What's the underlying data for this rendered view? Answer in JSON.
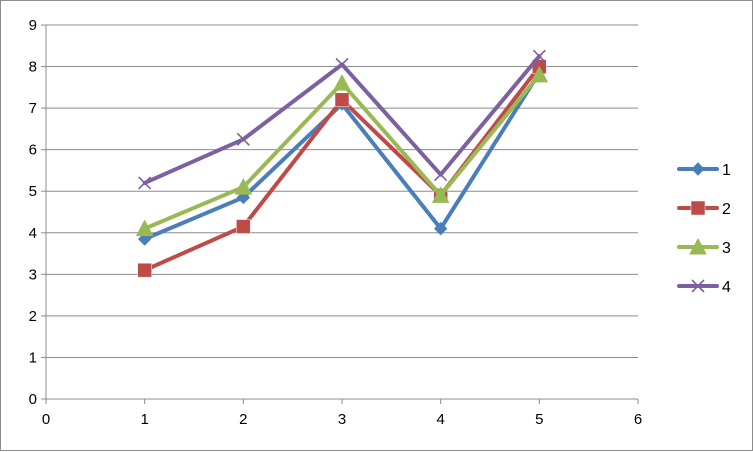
{
  "chart_data": {
    "type": "line",
    "title": "",
    "xlabel": "",
    "ylabel": "",
    "xlim": [
      0,
      6
    ],
    "ylim": [
      0,
      9
    ],
    "x_ticks": [
      0,
      1,
      2,
      3,
      4,
      5,
      6
    ],
    "y_ticks": [
      0,
      1,
      2,
      3,
      4,
      5,
      6,
      7,
      8,
      9
    ],
    "grid": "horizontal",
    "legend_position": "right",
    "x": [
      1,
      2,
      3,
      4,
      5
    ],
    "series": [
      {
        "name": "1",
        "color": "#4a7ebb",
        "marker": "diamond",
        "values": [
          3.85,
          4.85,
          7.1,
          4.1,
          7.85
        ]
      },
      {
        "name": "2",
        "color": "#be4b48",
        "marker": "square",
        "values": [
          3.1,
          4.15,
          7.2,
          4.9,
          8.0
        ]
      },
      {
        "name": "3",
        "color": "#98b954",
        "marker": "triangle",
        "values": [
          4.1,
          5.1,
          7.6,
          4.9,
          7.8
        ]
      },
      {
        "name": "4",
        "color": "#7d60a0",
        "marker": "x",
        "values": [
          5.2,
          6.25,
          8.05,
          5.4,
          8.25
        ]
      }
    ]
  }
}
